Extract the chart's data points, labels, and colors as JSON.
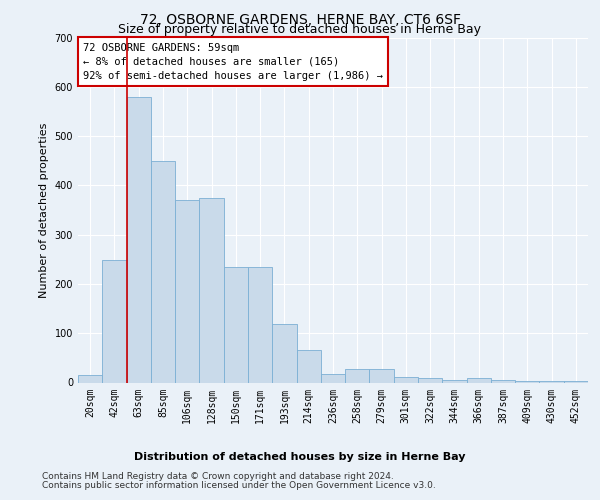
{
  "title": "72, OSBORNE GARDENS, HERNE BAY, CT6 6SF",
  "subtitle": "Size of property relative to detached houses in Herne Bay",
  "xlabel": "Distribution of detached houses by size in Herne Bay",
  "ylabel": "Number of detached properties",
  "bar_color": "#c9daea",
  "bar_edge_color": "#7bafd4",
  "categories": [
    "20sqm",
    "42sqm",
    "63sqm",
    "85sqm",
    "106sqm",
    "128sqm",
    "150sqm",
    "171sqm",
    "193sqm",
    "214sqm",
    "236sqm",
    "258sqm",
    "279sqm",
    "301sqm",
    "322sqm",
    "344sqm",
    "366sqm",
    "387sqm",
    "409sqm",
    "430sqm",
    "452sqm"
  ],
  "values": [
    15,
    248,
    580,
    450,
    370,
    375,
    235,
    235,
    118,
    65,
    18,
    28,
    28,
    11,
    10,
    6,
    9,
    5,
    4,
    4,
    4
  ],
  "ylim": [
    0,
    700
  ],
  "yticks": [
    0,
    100,
    200,
    300,
    400,
    500,
    600,
    700
  ],
  "annotation_text": "72 OSBORNE GARDENS: 59sqm\n← 8% of detached houses are smaller (165)\n92% of semi-detached houses are larger (1,986) →",
  "vline_pos": 1.5,
  "annotation_box_color": "#ffffff",
  "annotation_box_edge_color": "#cc0000",
  "vline_color": "#cc0000",
  "footer_line1": "Contains HM Land Registry data © Crown copyright and database right 2024.",
  "footer_line2": "Contains public sector information licensed under the Open Government Licence v3.0.",
  "background_color": "#eaf1f8",
  "plot_background_color": "#eaf1f8",
  "grid_color": "#ffffff",
  "title_fontsize": 10,
  "subtitle_fontsize": 9,
  "axis_label_fontsize": 8,
  "tick_fontsize": 7,
  "annotation_fontsize": 7.5,
  "footer_fontsize": 6.5
}
